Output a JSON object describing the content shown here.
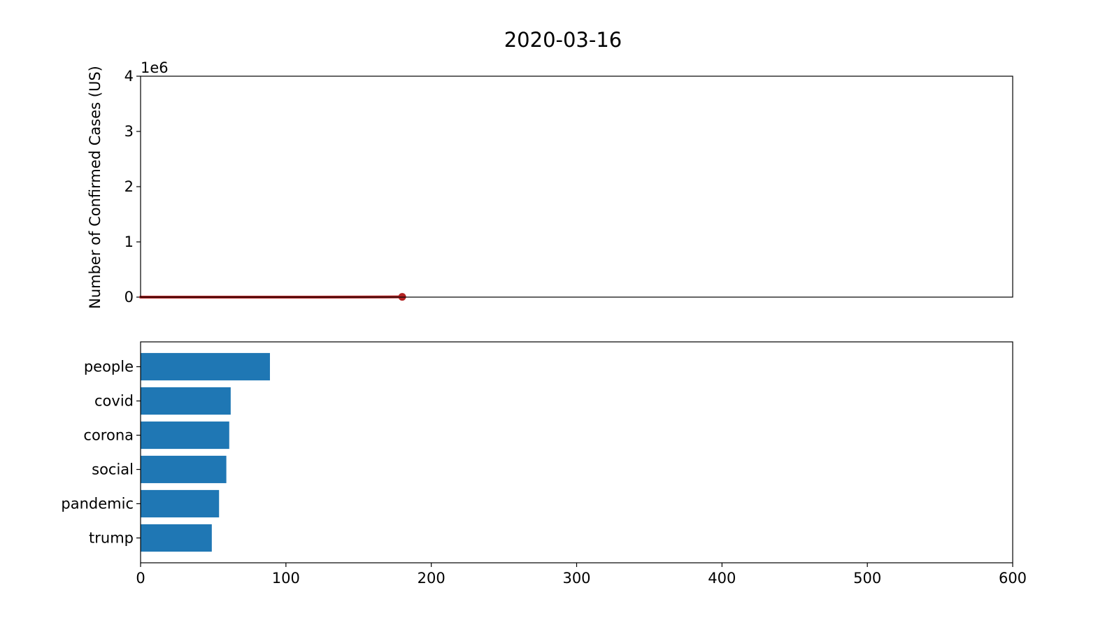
{
  "figure_title": "2020-03-16",
  "colors": {
    "line": "#b22222",
    "bar": "#1f77b4",
    "axis": "#000000"
  },
  "chart_data": [
    {
      "type": "line",
      "title": "",
      "xlabel": "",
      "ylabel": "Number of Confirmed Cases (US)",
      "offset_text": "1e6",
      "x": [
        0,
        30,
        60,
        90,
        120,
        150,
        170,
        180
      ],
      "y": [
        0,
        0,
        0,
        0,
        0,
        1000,
        2500,
        4500
      ],
      "xlim": [
        0,
        600
      ],
      "ylim": [
        0,
        4000000
      ],
      "yticks": [
        0,
        1000000,
        2000000,
        3000000,
        4000000
      ],
      "ytick_labels": [
        "0",
        "1",
        "2",
        "3",
        "4"
      ],
      "show_xticks": false,
      "end_marker": true,
      "grid": false
    },
    {
      "type": "bar",
      "orientation": "horizontal",
      "title": "",
      "xlabel": "",
      "ylabel": "",
      "categories": [
        "people",
        "covid",
        "corona",
        "social",
        "pandemic",
        "trump"
      ],
      "values": [
        89,
        62,
        61,
        59,
        54,
        49
      ],
      "xlim": [
        0,
        600
      ],
      "xticks": [
        0,
        100,
        200,
        300,
        400,
        500,
        600
      ],
      "xtick_labels": [
        "0",
        "100",
        "200",
        "300",
        "400",
        "500",
        "600"
      ],
      "grid": false
    }
  ]
}
